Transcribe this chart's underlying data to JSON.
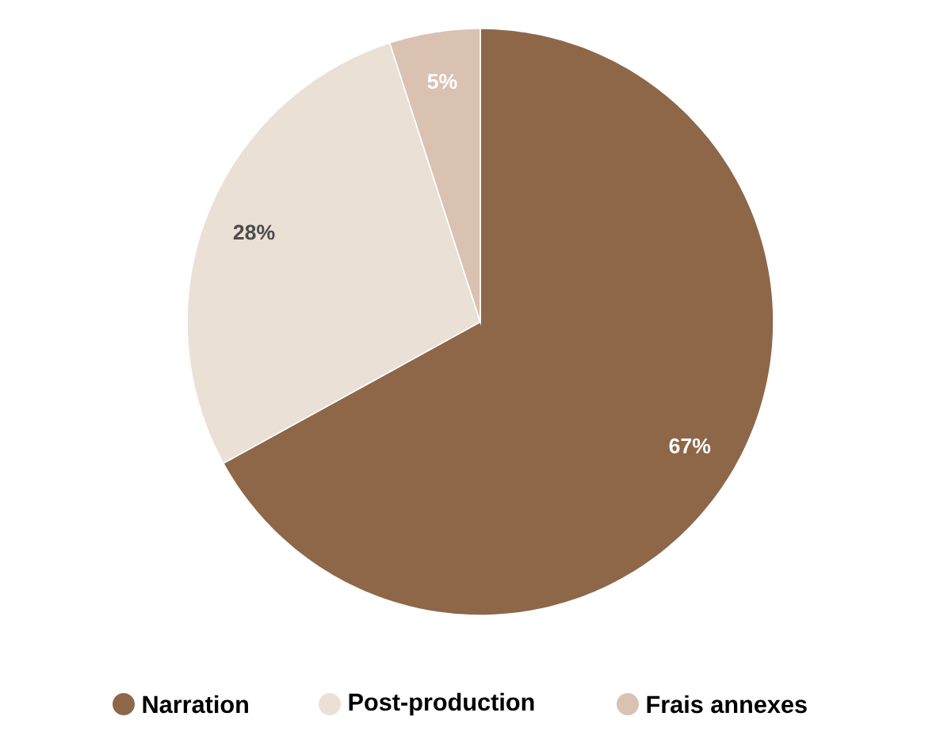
{
  "chart_data": {
    "type": "pie",
    "categories": [
      "Narration",
      "Post-production",
      "Frais annexes"
    ],
    "values": [
      67,
      28,
      5
    ],
    "colors": [
      "#8e6749",
      "#ebe0d6",
      "#d9c2b2"
    ],
    "value_labels": [
      "67%",
      "28%",
      "5%"
    ],
    "legend": "bottom"
  }
}
